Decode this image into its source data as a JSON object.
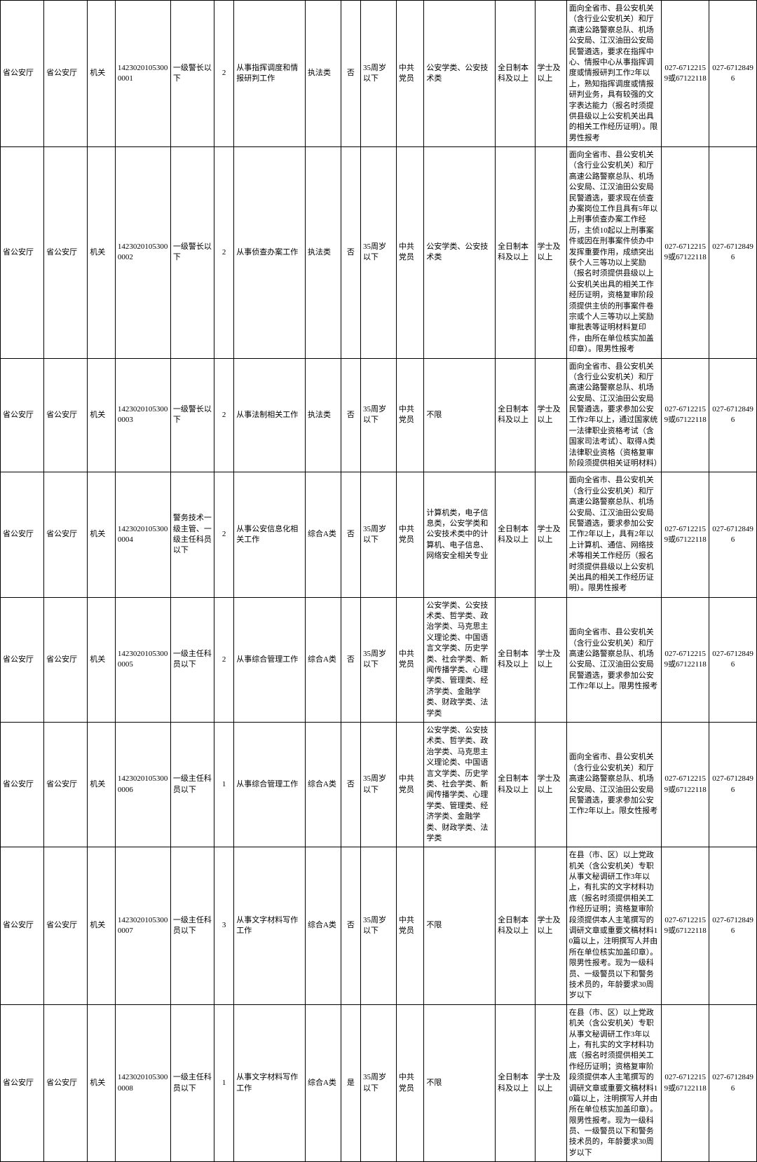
{
  "table": {
    "rows": [
      {
        "org1": "省公安厅",
        "org2": "省公安厅",
        "type": "机关",
        "code": "14230201053000001",
        "position": "一级警长以下",
        "count": "2",
        "duty": "从事指挥调度和情报研判工作",
        "category": "执法类",
        "flag": "否",
        "age": "35周岁以下",
        "party": "中共党员",
        "major": "公安学类、公安技术类",
        "edu": "全日制本科及以上",
        "degree": "学士及以上",
        "req": "面向全省市、县公安机关（含行业公安机关）和厅高速公路警察总队、机场公安局、江汉油田公安局民警遴选，要求在指挥中心、情报中心从事指挥调度或情报研判工作2年以上，熟知指挥调度或情报研判业务，具有较强的文字表达能力（报名时须提供县级以上公安机关出具的相关工作经历证明）。限男性报考",
        "phone1": "027-67122159或67122118",
        "phone2": "027-67128496"
      },
      {
        "org1": "省公安厅",
        "org2": "省公安厅",
        "type": "机关",
        "code": "14230201053000002",
        "position": "一级警长以下",
        "count": "2",
        "duty": "从事侦查办案工作",
        "category": "执法类",
        "flag": "否",
        "age": "35周岁以下",
        "party": "中共党员",
        "major": "公安学类、公安技术类",
        "edu": "全日制本科及以上",
        "degree": "学士及以上",
        "req": "面向全省市、县公安机关（含行业公安机关）和厅高速公路警察总队、机场公安局、江汉油田公安局民警遴选，要求现在侦查办案岗位工作且具有5年以上刑事侦查办案工作经历，主侦10起以上刑事案件或因在刑事案件侦办中发挥重要作用，成绩突出获个人三等功以上奖励（报名时须提供县级以上公安机关出具的相关工作经历证明，资格复审阶段须提供主侦的刑事案件卷宗或个人三等功以上奖励审批表等证明材料复印件，由所在单位核实加盖印章）。限男性报考",
        "phone1": "027-67122159或67122118",
        "phone2": "027-67128496"
      },
      {
        "org1": "省公安厅",
        "org2": "省公安厅",
        "type": "机关",
        "code": "14230201053000003",
        "position": "一级警长以下",
        "count": "2",
        "duty": "从事法制相关工作",
        "category": "执法类",
        "flag": "否",
        "age": "35周岁以下",
        "party": "中共党员",
        "major": "不限",
        "edu": "全日制本科及以上",
        "degree": "学士及以上",
        "req": "面向全省市、县公安机关（含行业公安机关）和厅高速公路警察总队、机场公安局、江汉油田公安局民警遴选，要求参加公安工作2年以上，通过国家统一法律职业资格考试（含国家司法考试）、取得A类法律职业资格（资格复审阶段须提供相关证明材料）",
        "phone1": "027-67122159或67122118",
        "phone2": "027-67128496"
      },
      {
        "org1": "省公安厅",
        "org2": "省公安厅",
        "type": "机关",
        "code": "14230201053000004",
        "position": "警务技术一级主管、一级主任科员以下",
        "count": "2",
        "duty": "从事公安信息化相关工作",
        "category": "综合A类",
        "flag": "否",
        "age": "35周岁以下",
        "party": "中共党员",
        "major": "计算机类，电子信息类，公安学类和公安技术类中的计算机、电子信息、网络安全相关专业",
        "edu": "全日制本科及以上",
        "degree": "学士及以上",
        "req": "面向全省市、县公安机关（含行业公安机关）和厅高速公路警察总队、机场公安局、江汉油田公安局民警遴选，要求参加公安工作2年以上，具有2年以上计算机、通信、网络技术等相关工作经历（报名时须提供县级以上公安机关出具的相关工作经历证明）。限男性报考",
        "phone1": "027-67122159或67122118",
        "phone2": "027-67128496"
      },
      {
        "org1": "省公安厅",
        "org2": "省公安厅",
        "type": "机关",
        "code": "14230201053000005",
        "position": "一级主任科员以下",
        "count": "2",
        "duty": "从事综合管理工作",
        "category": "综合A类",
        "flag": "否",
        "age": "35周岁以下",
        "party": "中共党员",
        "major": "公安学类、公安技术类、哲学类、政治学类、马克思主义理论类、中国语言文学类、历史学类、社会学类、新闻传播学类、心理学类、管理类、经济学类、金融学类、财政学类、法学类",
        "edu": "全日制本科及以上",
        "degree": "学士及以上",
        "req": "面向全省市、县公安机关（含行业公安机关）和厅高速公路警察总队、机场公安局、江汉油田公安局民警遴选，要求参加公安工作2年以上。限男性报考",
        "phone1": "027-67122159或67122118",
        "phone2": "027-67128496"
      },
      {
        "org1": "省公安厅",
        "org2": "省公安厅",
        "type": "机关",
        "code": "14230201053000006",
        "position": "一级主任科员以下",
        "count": "1",
        "duty": "从事综合管理工作",
        "category": "综合A类",
        "flag": "否",
        "age": "35周岁以下",
        "party": "中共党员",
        "major": "公安学类、公安技术类、哲学类、政治学类、马克思主义理论类、中国语言文学类、历史学类、社会学类、新闻传播学类、心理学类、管理类、经济学类、金融学类、财政学类、法学类",
        "edu": "全日制本科及以上",
        "degree": "学士及以上",
        "req": "面向全省市、县公安机关（含行业公安机关）和厅高速公路警察总队、机场公安局、江汉油田公安局民警遴选，要求参加公安工作2年以上。限女性报考",
        "phone1": "027-67122159或67122118",
        "phone2": "027-67128496"
      },
      {
        "org1": "省公安厅",
        "org2": "省公安厅",
        "type": "机关",
        "code": "14230201053000007",
        "position": "一级主任科员以下",
        "count": "3",
        "duty": "从事文字材料写作工作",
        "category": "综合A类",
        "flag": "否",
        "age": "35周岁以下",
        "party": "中共党员",
        "major": "不限",
        "edu": "全日制本科及以上",
        "degree": "学士及以上",
        "req": "在县（市、区）以上党政机关（含公安机关）专职从事文秘调研工作3年以上，有扎实的文字材料功底（报名时须提供相关工作经历证明；资格复审阶段须提供本人主笔撰写的调研文章或重要文稿材料10篇以上，注明撰写人并由所在单位核实加盖印章）。限男性报考。现为一级科员、一级警员以下和警务技术员的，年龄要求30周岁以下",
        "phone1": "027-67122159或67122118",
        "phone2": "027-67128496"
      },
      {
        "org1": "省公安厅",
        "org2": "省公安厅",
        "type": "机关",
        "code": "14230201053000008",
        "position": "一级主任科员以下",
        "count": "1",
        "duty": "从事文字材料写作工作",
        "category": "综合A类",
        "flag": "是",
        "age": "35周岁以下",
        "party": "中共党员",
        "major": "不限",
        "edu": "全日制本科及以上",
        "degree": "学士及以上",
        "req": "在县（市、区）以上党政机关（含公安机关）专职从事文秘调研工作3年以上，有扎实的文字材料功底（报名时须提供相关工作经历证明；资格复审阶段须提供本人主笔撰写的调研文章或重要文稿材料10篇以上，注明撰写人并由所在单位核实加盖印章）。限男性报考。现为一级科员、一级警员以下和警务技术员的，年龄要求30周岁以下",
        "phone1": "027-67122159或67122118",
        "phone2": "027-67128496"
      }
    ]
  }
}
